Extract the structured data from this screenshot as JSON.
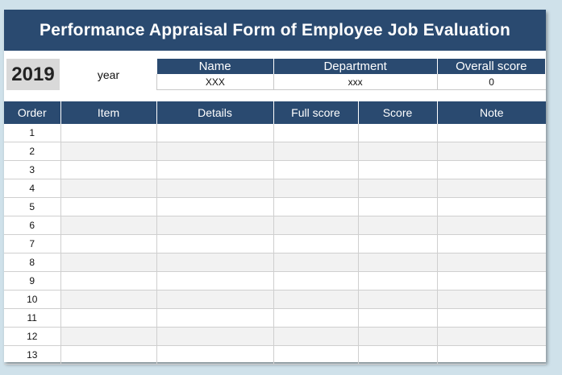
{
  "title": "Performance Appraisal Form of Employee Job Evaluation",
  "year": "2019",
  "year_label": "year",
  "info": {
    "headers": [
      "Name",
      "Department",
      "Overall score"
    ],
    "values": [
      "XXX",
      "xxx",
      "0"
    ]
  },
  "table": {
    "headers": [
      "Order",
      "Item",
      "Details",
      "Full score",
      "Score",
      "Note"
    ],
    "orders": [
      "1",
      "2",
      "3",
      "4",
      "5",
      "6",
      "7",
      "8",
      "9",
      "10",
      "11",
      "12",
      "13"
    ]
  },
  "colors": {
    "header_bg": "#2a4a70",
    "row_alt": "#f2f2f2",
    "page_bg": "#cfe1ea"
  }
}
